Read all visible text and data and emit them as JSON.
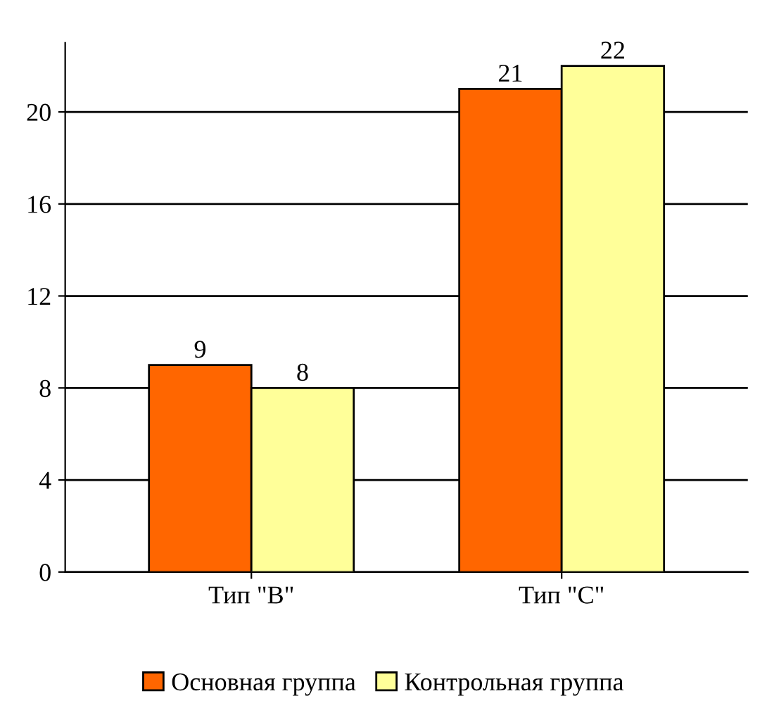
{
  "chart_data": {
    "type": "bar",
    "categories": [
      "Тип \"B\"",
      "Тип \"C\""
    ],
    "series": [
      {
        "name": "Основная группа",
        "color": "#ff6600",
        "values": [
          9,
          21
        ]
      },
      {
        "name": "Контрольная группа",
        "color": "#ffff99",
        "values": [
          8,
          22
        ]
      }
    ],
    "ylim": [
      0,
      23
    ],
    "yticks": [
      0,
      4,
      8,
      12,
      16,
      20
    ],
    "grid": "y",
    "legend": "bottom",
    "data_labels": true
  }
}
